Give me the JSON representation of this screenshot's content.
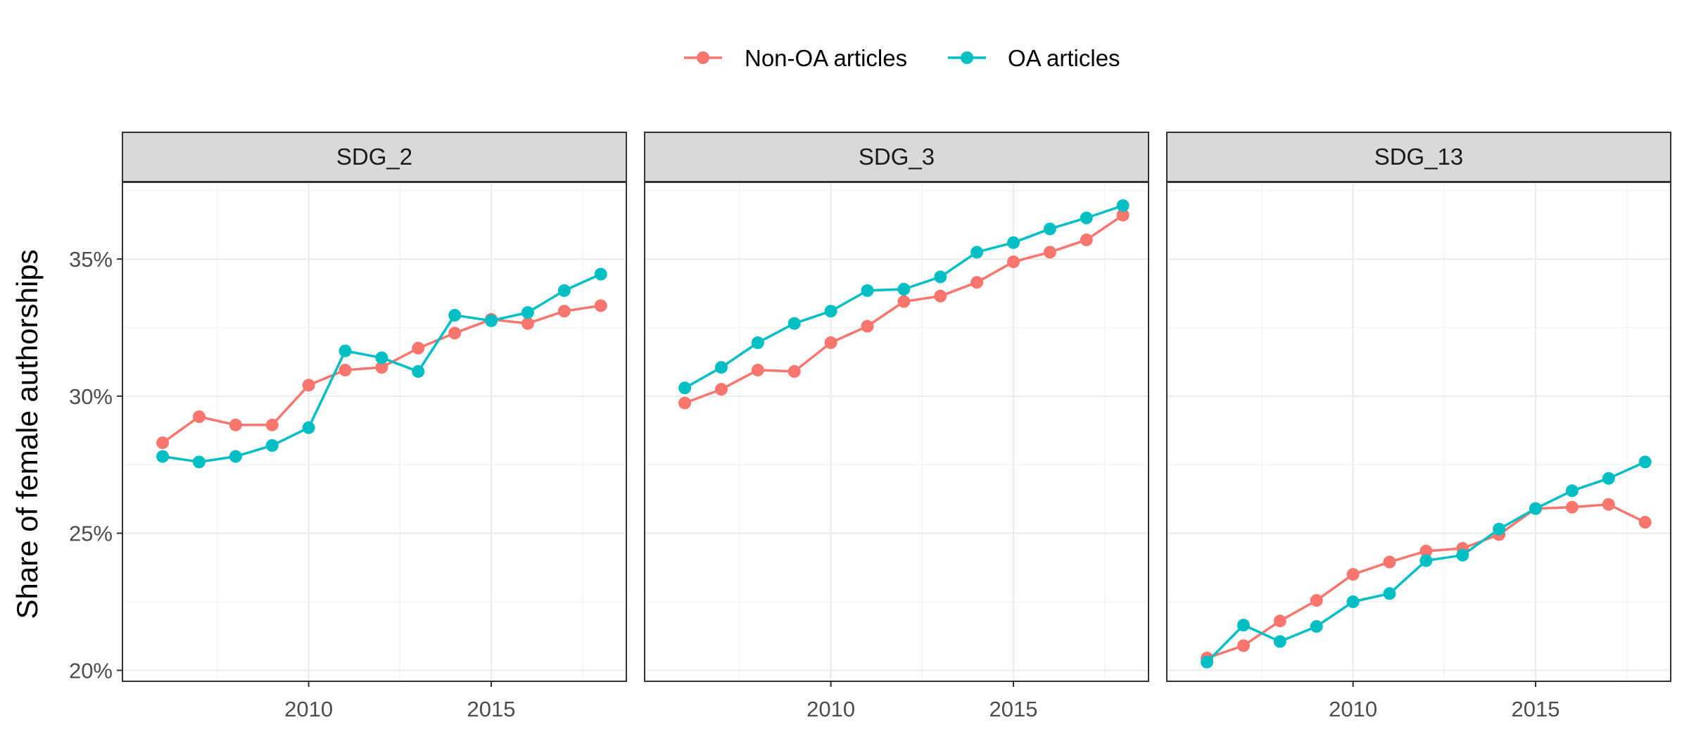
{
  "chart_data": {
    "type": "line",
    "ylabel": "Share of female authorships",
    "xlabel": "",
    "x": [
      2006,
      2007,
      2008,
      2009,
      2010,
      2011,
      2012,
      2013,
      2014,
      2015,
      2016,
      2017,
      2018
    ],
    "xlim": [
      2004.9,
      2018.7
    ],
    "ylim": [
      19.6,
      37.8
    ],
    "x_ticks": [
      2010,
      2015
    ],
    "x_tick_labels": [
      "2010",
      "2015"
    ],
    "y_ticks": [
      20,
      25,
      30,
      35
    ],
    "y_tick_labels": [
      "20%",
      "25%",
      "30%",
      "35%"
    ],
    "grid": true,
    "legend_position": "top",
    "series_names": [
      "Non-OA articles",
      "OA articles"
    ],
    "colors": {
      "Non-OA articles": "#F8766D",
      "OA articles": "#00BFC4"
    },
    "panels": [
      {
        "title": "SDG_2",
        "series": [
          {
            "name": "Non-OA articles",
            "values": [
              28.3,
              29.25,
              28.95,
              28.95,
              30.4,
              30.95,
              31.05,
              31.75,
              32.3,
              32.8,
              32.65,
              33.1,
              33.3
            ]
          },
          {
            "name": "OA articles",
            "values": [
              27.8,
              27.6,
              27.8,
              28.2,
              28.85,
              31.65,
              31.4,
              30.9,
              32.95,
              32.75,
              33.05,
              33.85,
              34.45
            ]
          }
        ]
      },
      {
        "title": "SDG_3",
        "series": [
          {
            "name": "Non-OA articles",
            "values": [
              29.75,
              30.25,
              30.95,
              30.9,
              31.95,
              32.55,
              33.45,
              33.65,
              34.15,
              34.9,
              35.25,
              35.7,
              36.6
            ]
          },
          {
            "name": "OA articles",
            "values": [
              30.3,
              31.05,
              31.95,
              32.65,
              33.1,
              33.85,
              33.9,
              34.35,
              35.25,
              35.6,
              36.1,
              36.5,
              36.95
            ]
          }
        ]
      },
      {
        "title": "SDG_13",
        "series": [
          {
            "name": "Non-OA articles",
            "values": [
              20.45,
              20.9,
              21.8,
              22.55,
              23.5,
              23.95,
              24.35,
              24.45,
              24.95,
              25.9,
              25.95,
              26.05,
              25.4
            ]
          },
          {
            "name": "OA articles",
            "values": [
              20.3,
              21.65,
              21.05,
              21.6,
              22.5,
              22.8,
              24.0,
              24.2,
              25.15,
              25.9,
              26.55,
              27.0,
              27.6
            ]
          }
        ]
      }
    ]
  }
}
